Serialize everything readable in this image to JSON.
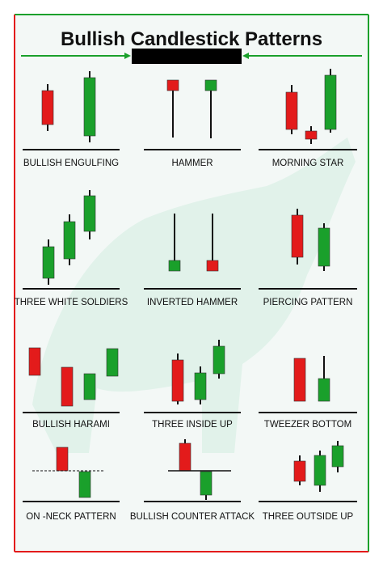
{
  "header": {
    "title": "Bullish Candlestick Patterns"
  },
  "patterns": [
    {
      "label": "BULLISH ENGULFING"
    },
    {
      "label": "HAMMER"
    },
    {
      "label": "MORNING STAR"
    },
    {
      "label": "THREE WHITE SOLDIERS"
    },
    {
      "label": "INVERTED HAMMER"
    },
    {
      "label": "PIERCING PATTERN"
    },
    {
      "label": "BULLISH HARAMI"
    },
    {
      "label": "THREE INSIDE UP"
    },
    {
      "label": "TWEEZER BOTTOM"
    },
    {
      "label": "ON -NECK PATTERN"
    },
    {
      "label": "BULLISH COUNTER ATTACK"
    },
    {
      "label": "THREE OUTSIDE UP"
    }
  ]
}
